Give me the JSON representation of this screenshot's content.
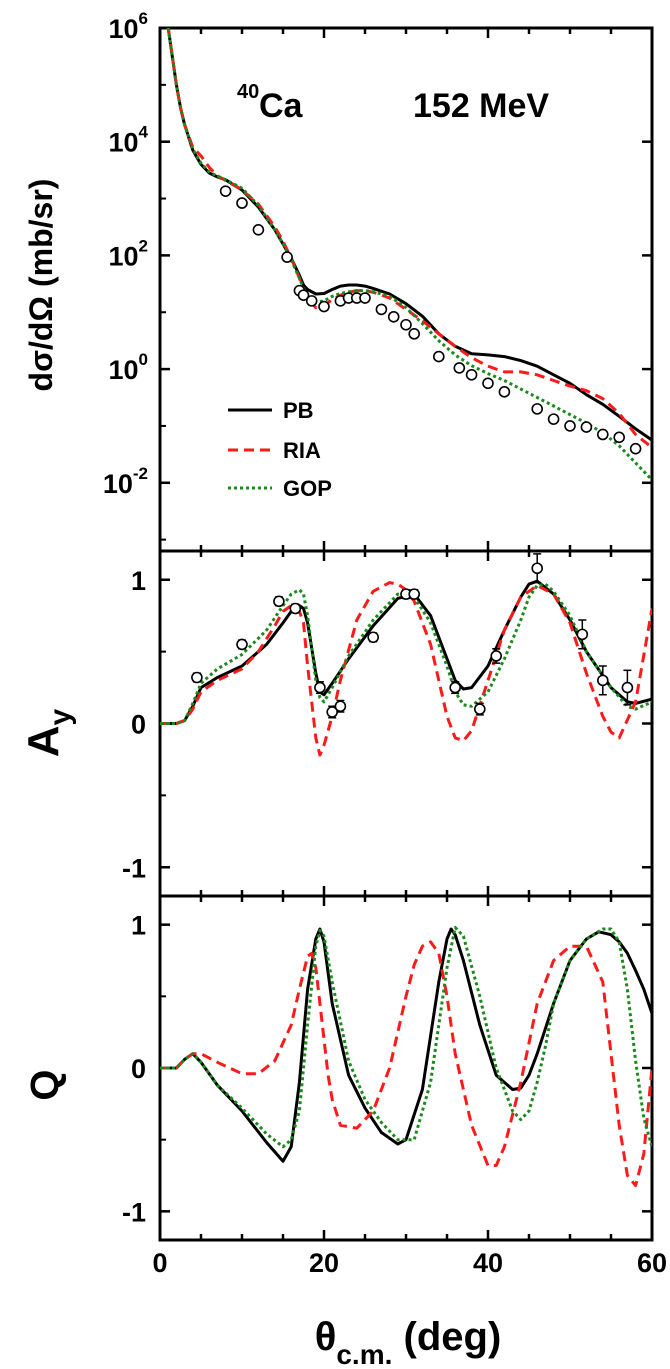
{
  "chart_data": {
    "type": "line",
    "xlabel_main": "θ",
    "xlabel_sub": "c.m.",
    "xlabel_unit": " (deg)",
    "xlim": [
      0,
      60
    ],
    "xticks": [
      "0",
      "20",
      "40",
      "60"
    ],
    "styles": {
      "PB": {
        "color": "#000000",
        "dash": "",
        "width": 3
      },
      "RIA": {
        "color": "#ff1a1a",
        "dash": "10,6",
        "width": 3
      },
      "GOP": {
        "color": "#1a8a1a",
        "dash": "3,3",
        "width": 3
      }
    },
    "legend": [
      "PB",
      "RIA",
      "GOP"
    ],
    "panels": [
      {
        "id": "cross-section",
        "ylabel": "dσ/dΩ (mb/sr)",
        "scale": "log",
        "ylim_log": [
          -3.2,
          6
        ],
        "yticks": [
          {
            "base": "10",
            "exp": "-2",
            "v": -2
          },
          {
            "base": "10",
            "exp": "0",
            "v": 0
          },
          {
            "base": "10",
            "exp": "2",
            "v": 2
          },
          {
            "base": "10",
            "exp": "4",
            "v": 4
          },
          {
            "base": "10",
            "exp": "6",
            "v": 6
          }
        ],
        "annotation": {
          "nucleus_sup": "40",
          "nucleus": "Ca",
          "energy": "152 MeV"
        },
        "series": [
          {
            "name": "PB",
            "x": [
              1,
              1.5,
              2,
              2.5,
              3,
              4,
              5,
              6,
              7,
              8,
              10,
              12,
              14,
              15,
              16,
              17,
              17.5,
              18,
              19,
              20,
              21,
              22,
              23,
              24,
              25,
              26,
              28,
              30,
              32,
              34,
              36,
              38,
              40,
              42,
              44,
              46,
              48,
              50,
              52,
              54,
              56,
              58,
              60
            ],
            "y": [
              6,
              5.5,
              5.0,
              4.6,
              4.3,
              3.85,
              3.6,
              3.45,
              3.38,
              3.33,
              3.15,
              2.85,
              2.45,
              2.2,
              1.95,
              1.65,
              1.48,
              1.4,
              1.32,
              1.33,
              1.4,
              1.46,
              1.48,
              1.48,
              1.46,
              1.42,
              1.32,
              1.15,
              0.93,
              0.62,
              0.4,
              0.27,
              0.25,
              0.22,
              0.15,
              0.05,
              -0.1,
              -0.25,
              -0.45,
              -0.62,
              -0.83,
              -1.05,
              -1.25
            ]
          },
          {
            "name": "RIA",
            "x": [
              1,
              1.5,
              2,
              2.5,
              3,
              4,
              5,
              6,
              7,
              8,
              10,
              12,
              14,
              15,
              16,
              17,
              17.5,
              18,
              19,
              20,
              21,
              22,
              23,
              24,
              25,
              26,
              28,
              30,
              32,
              34,
              36,
              38,
              40,
              42,
              44,
              46,
              48,
              50,
              52,
              54,
              56,
              58,
              60
            ],
            "y": [
              6,
              5.5,
              5.0,
              4.6,
              4.3,
              3.9,
              3.75,
              3.55,
              3.4,
              3.32,
              3.15,
              2.9,
              2.5,
              2.25,
              1.95,
              1.6,
              1.4,
              1.25,
              1.08,
              1.12,
              1.22,
              1.3,
              1.35,
              1.38,
              1.38,
              1.35,
              1.25,
              1.05,
              0.85,
              0.62,
              0.4,
              0.2,
              0.05,
              -0.05,
              -0.05,
              -0.1,
              -0.2,
              -0.3,
              -0.38,
              -0.52,
              -0.78,
              -1.15,
              -1.38
            ]
          },
          {
            "name": "GOP",
            "x": [
              1,
              1.5,
              2,
              2.5,
              3,
              4,
              5,
              6,
              7,
              8,
              10,
              12,
              14,
              15,
              16,
              17,
              17.5,
              18,
              19,
              20,
              21,
              22,
              23,
              24,
              25,
              26,
              28,
              30,
              32,
              34,
              36,
              38,
              40,
              42,
              44,
              46,
              48,
              50,
              52,
              54,
              56,
              58,
              60
            ],
            "y": [
              6,
              5.5,
              5.0,
              4.6,
              4.3,
              3.87,
              3.62,
              3.47,
              3.39,
              3.33,
              3.18,
              2.88,
              2.45,
              2.2,
              1.92,
              1.6,
              1.42,
              1.3,
              1.18,
              1.2,
              1.28,
              1.33,
              1.36,
              1.38,
              1.38,
              1.36,
              1.28,
              1.08,
              0.8,
              0.5,
              0.25,
              0.06,
              -0.08,
              -0.2,
              -0.35,
              -0.5,
              -0.65,
              -0.8,
              -0.95,
              -1.12,
              -1.35,
              -1.65,
              -1.95
            ]
          }
        ],
        "data_points": {
          "x": [
            8,
            10,
            12,
            15.5,
            17,
            17.5,
            18.5,
            20,
            22,
            23,
            24,
            25,
            27,
            28.5,
            30,
            31,
            34,
            36.5,
            38,
            40,
            42,
            46,
            48,
            50,
            52,
            54,
            56,
            58
          ],
          "y": [
            3.13,
            2.92,
            2.45,
            1.97,
            1.38,
            1.3,
            1.2,
            1.1,
            1.2,
            1.25,
            1.25,
            1.25,
            1.05,
            0.92,
            0.78,
            0.62,
            0.22,
            0.02,
            -0.1,
            -0.25,
            -0.4,
            -0.7,
            -0.88,
            -1.0,
            -1.02,
            -1.15,
            -1.2,
            -1.4
          ]
        }
      },
      {
        "id": "analyzing-power",
        "ylabel": "A",
        "ylabel_sub": "y",
        "scale": "linear",
        "ylim": [
          -1.2,
          1.2
        ],
        "yticks": [
          {
            "label": "1",
            "v": 1
          },
          {
            "label": "0",
            "v": 0
          },
          {
            "label": "-1",
            "v": -1
          }
        ],
        "series": [
          {
            "name": "PB",
            "x": [
              0,
              2,
              3,
              4,
              5,
              7,
              10,
              13,
              15,
              16,
              17,
              17.5,
              18,
              19,
              19.5,
              20,
              21,
              23,
              26,
              29,
              31,
              33,
              35,
              36,
              37,
              38,
              40,
              42,
              44,
              45,
              46,
              48,
              50,
              52,
              55,
              57,
              58,
              60
            ],
            "y": [
              0,
              0,
              0.02,
              0.12,
              0.25,
              0.32,
              0.4,
              0.55,
              0.7,
              0.78,
              0.82,
              0.8,
              0.7,
              0.35,
              0.22,
              0.2,
              0.28,
              0.45,
              0.68,
              0.87,
              0.9,
              0.75,
              0.45,
              0.3,
              0.24,
              0.25,
              0.4,
              0.65,
              0.88,
              0.97,
              0.99,
              0.9,
              0.72,
              0.5,
              0.25,
              0.15,
              0.14,
              0.17
            ]
          },
          {
            "name": "RIA",
            "x": [
              0,
              2,
              3,
              4,
              5,
              7,
              10,
              12,
              14,
              15,
              16,
              17,
              17.5,
              18,
              19,
              19.5,
              20,
              21,
              22,
              24,
              26,
              28,
              29,
              30,
              31,
              33,
              34,
              35,
              36,
              37,
              38,
              40,
              42,
              44,
              45,
              46,
              48,
              50,
              52,
              54,
              55,
              56,
              58,
              60
            ],
            "y": [
              0,
              0,
              0.02,
              0.1,
              0.22,
              0.3,
              0.38,
              0.5,
              0.68,
              0.78,
              0.82,
              0.78,
              0.7,
              0.4,
              -0.1,
              -0.22,
              -0.15,
              0.05,
              0.3,
              0.72,
              0.92,
              0.98,
              0.97,
              0.93,
              0.85,
              0.55,
              0.3,
              0.05,
              -0.1,
              -0.12,
              -0.05,
              0.3,
              0.65,
              0.88,
              0.92,
              0.96,
              0.9,
              0.7,
              0.35,
              0.05,
              -0.06,
              -0.1,
              0.15,
              0.8
            ]
          },
          {
            "name": "GOP",
            "x": [
              0,
              2,
              3,
              4,
              5,
              7,
              10,
              13,
              15,
              16,
              17,
              17.5,
              18,
              19,
              19.5,
              20,
              21,
              23,
              26,
              29,
              31,
              33,
              35,
              36,
              37,
              38,
              40,
              42,
              44,
              45,
              46,
              47,
              48,
              50,
              52,
              55,
              57,
              58,
              60
            ],
            "y": [
              0,
              0,
              0.02,
              0.14,
              0.28,
              0.38,
              0.48,
              0.65,
              0.82,
              0.9,
              0.93,
              0.9,
              0.75,
              0.3,
              0.18,
              0.15,
              0.25,
              0.47,
              0.72,
              0.9,
              0.88,
              0.7,
              0.4,
              0.22,
              0.13,
              0.12,
              0.22,
              0.45,
              0.72,
              0.88,
              0.96,
              0.97,
              0.92,
              0.75,
              0.5,
              0.25,
              0.12,
              0.1,
              0.15
            ]
          }
        ],
        "data_points": {
          "x": [
            4.5,
            10,
            14.5,
            16.5,
            19.5,
            21,
            22,
            26,
            30,
            31,
            36,
            39,
            41,
            46,
            51.5,
            54,
            57
          ],
          "y": [
            0.32,
            0.55,
            0.85,
            0.8,
            0.25,
            0.08,
            0.12,
            0.6,
            0.9,
            0.9,
            0.25,
            0.1,
            0.47,
            1.08,
            0.62,
            0.3,
            0.25
          ],
          "err": [
            0.03,
            0.03,
            0.03,
            0.03,
            0.04,
            0.04,
            0.04,
            0.03,
            0.03,
            0.03,
            0.04,
            0.04,
            0.05,
            0.1,
            0.1,
            0.1,
            0.12
          ]
        }
      },
      {
        "id": "spin-rotation",
        "ylabel": "Q",
        "scale": "linear",
        "ylim": [
          -1.2,
          1.2
        ],
        "yticks": [
          {
            "label": "1",
            "v": 1
          },
          {
            "label": "0",
            "v": 0
          },
          {
            "label": "-1",
            "v": -1
          }
        ],
        "series": [
          {
            "name": "PB",
            "x": [
              0,
              2,
              3,
              4,
              5,
              7,
              10,
              13,
              15,
              16,
              17,
              18,
              19,
              19.5,
              20,
              21,
              23,
              25,
              27,
              29,
              30,
              32,
              34,
              35,
              35.5,
              36,
              37,
              39,
              41,
              43,
              44,
              45,
              46,
              48,
              50,
              52,
              53.5,
              55,
              56,
              57,
              58,
              59,
              60
            ],
            "y": [
              0,
              0,
              0.06,
              0.1,
              0.04,
              -0.12,
              -0.3,
              -0.52,
              -0.65,
              -0.55,
              -0.1,
              0.55,
              0.9,
              0.97,
              0.88,
              0.45,
              -0.05,
              -0.28,
              -0.45,
              -0.53,
              -0.5,
              -0.15,
              0.6,
              0.9,
              0.97,
              0.93,
              0.75,
              0.3,
              -0.05,
              -0.15,
              -0.14,
              -0.05,
              0.1,
              0.45,
              0.75,
              0.9,
              0.95,
              0.93,
              0.88,
              0.8,
              0.68,
              0.55,
              0.38
            ]
          },
          {
            "name": "RIA",
            "x": [
              0,
              2,
              3,
              4,
              5,
              7,
              10,
              12,
              14,
              16,
              17,
              18,
              18.5,
              19,
              20,
              20.5,
              21,
              22,
              24,
              26,
              28,
              30,
              31,
              32,
              33,
              34,
              35,
              36,
              38,
              40,
              41,
              42,
              44,
              46,
              48,
              50,
              52,
              54,
              55,
              56,
              57,
              58,
              59,
              60
            ],
            "y": [
              0,
              0,
              0.06,
              0.1,
              0.1,
              0.04,
              -0.04,
              -0.04,
              0.05,
              0.3,
              0.55,
              0.78,
              0.8,
              0.7,
              0.2,
              -0.05,
              -0.22,
              -0.4,
              -0.42,
              -0.3,
              0,
              0.5,
              0.72,
              0.85,
              0.88,
              0.8,
              0.5,
              0.1,
              -0.4,
              -0.68,
              -0.68,
              -0.55,
              -0.1,
              0.45,
              0.75,
              0.85,
              0.85,
              0.6,
              0.1,
              -0.4,
              -0.75,
              -0.82,
              -0.6,
              0.0
            ]
          },
          {
            "name": "GOP",
            "x": [
              0,
              2,
              3,
              4,
              5,
              7,
              10,
              13,
              15,
              16,
              17,
              18,
              19,
              19.5,
              20,
              21,
              23,
              25,
              27,
              29,
              31,
              33,
              35,
              36,
              37,
              39,
              41,
              43,
              44,
              45,
              46,
              47,
              48,
              50,
              52,
              54,
              55,
              56,
              57,
              58,
              59,
              60
            ],
            "y": [
              0,
              0,
              0.06,
              0.1,
              0.04,
              -0.12,
              -0.28,
              -0.46,
              -0.55,
              -0.5,
              -0.3,
              0.3,
              0.85,
              0.96,
              0.92,
              0.6,
              0.05,
              -0.22,
              -0.38,
              -0.5,
              -0.5,
              -0.1,
              0.7,
              0.98,
              0.92,
              0.5,
              0.0,
              -0.3,
              -0.36,
              -0.3,
              -0.1,
              0.15,
              0.45,
              0.75,
              0.9,
              0.97,
              0.97,
              0.88,
              0.55,
              0.05,
              -0.35,
              -0.55
            ]
          }
        ]
      }
    ]
  }
}
